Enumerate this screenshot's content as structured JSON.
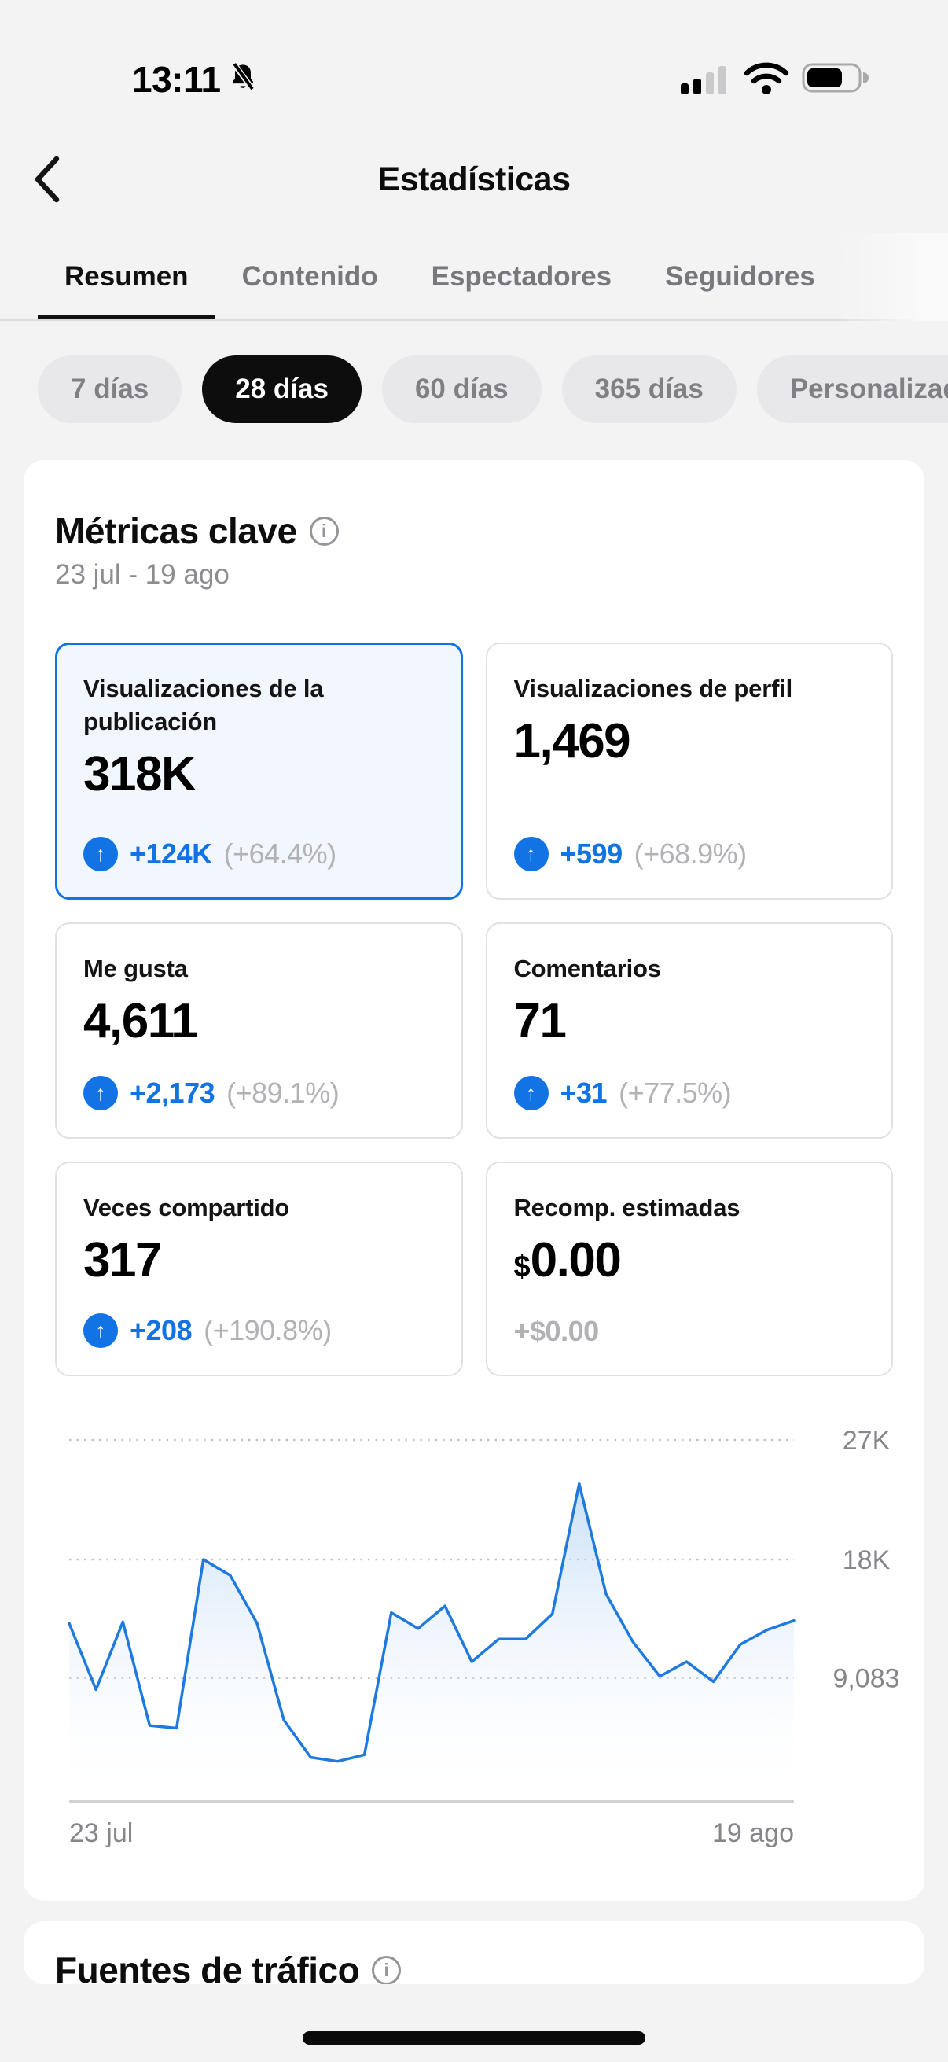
{
  "status_bar": {
    "time": "13:11"
  },
  "header": {
    "title": "Estadísticas"
  },
  "tabs": [
    {
      "label": "Resumen",
      "active": true
    },
    {
      "label": "Contenido",
      "active": false
    },
    {
      "label": "Espectadores",
      "active": false
    },
    {
      "label": "Seguidores",
      "active": false
    }
  ],
  "filters": {
    "options": [
      {
        "label": "7 días",
        "active": false
      },
      {
        "label": "28 días",
        "active": true
      },
      {
        "label": "60 días",
        "active": false
      },
      {
        "label": "365 días",
        "active": false
      },
      {
        "label": "Personalizado",
        "active": false
      }
    ]
  },
  "metrics": {
    "title": "Métricas clave",
    "date_range": "23 jul - 19 ago",
    "cards": [
      {
        "title": "Visualizaciones de la publicación",
        "value_prefix": "",
        "value": "318K",
        "delta": "+124K",
        "delta_pct": "(+64.4%)",
        "selected": true,
        "arrow": true
      },
      {
        "title": "Visualizaciones de perfil",
        "value_prefix": "",
        "value": "1,469",
        "delta": "+599",
        "delta_pct": "(+68.9%)",
        "selected": false,
        "arrow": true
      },
      {
        "title": "Me gusta",
        "value_prefix": "",
        "value": "4,611",
        "delta": "+2,173",
        "delta_pct": "(+89.1%)",
        "selected": false,
        "arrow": true
      },
      {
        "title": "Comentarios",
        "value_prefix": "",
        "value": "71",
        "delta": "+31",
        "delta_pct": "(+77.5%)",
        "selected": false,
        "arrow": true
      },
      {
        "title": "Veces compartido",
        "value_prefix": "",
        "value": "317",
        "delta": "+208",
        "delta_pct": "(+190.8%)",
        "selected": false,
        "arrow": true
      },
      {
        "title": "Recomp. estimadas",
        "value_prefix": "$",
        "value": "0.00",
        "delta": "+$0.00",
        "delta_pct": "",
        "selected": false,
        "arrow": false
      }
    ]
  },
  "chart_data": {
    "type": "area",
    "x_start_label": "23 jul",
    "x_end_label": "19 ago",
    "num_points": 28,
    "values": [
      13200,
      8200,
      13300,
      5500,
      5300,
      18000,
      16800,
      13200,
      5900,
      3100,
      2800,
      3300,
      14000,
      12800,
      14500,
      10300,
      12000,
      12000,
      13900,
      23700,
      15400,
      11800,
      9200,
      10300,
      8800,
      11600,
      12700,
      13400
    ],
    "y_ticks": [
      {
        "label": "27K",
        "value": 27000
      },
      {
        "label": "18K",
        "value": 18000
      },
      {
        "label": "9,083",
        "value": 9083
      }
    ],
    "ylim": [
      0,
      27000
    ],
    "grid": "dashed-horizontal",
    "legend": "none",
    "line_color": "#1e7ae0",
    "area_fill": "vertical blue gradient fading to white"
  },
  "next_section": {
    "title": "Fuentes de tráfico"
  },
  "colors": {
    "accent_blue": "#1273e5",
    "line_blue": "#1e7ae0",
    "muted_gray": "#b2b2b6",
    "text_gray": "#8c8c91",
    "selected_card_bg": "#f2f7fd",
    "active_pill_bg": "#0d0d0d"
  }
}
